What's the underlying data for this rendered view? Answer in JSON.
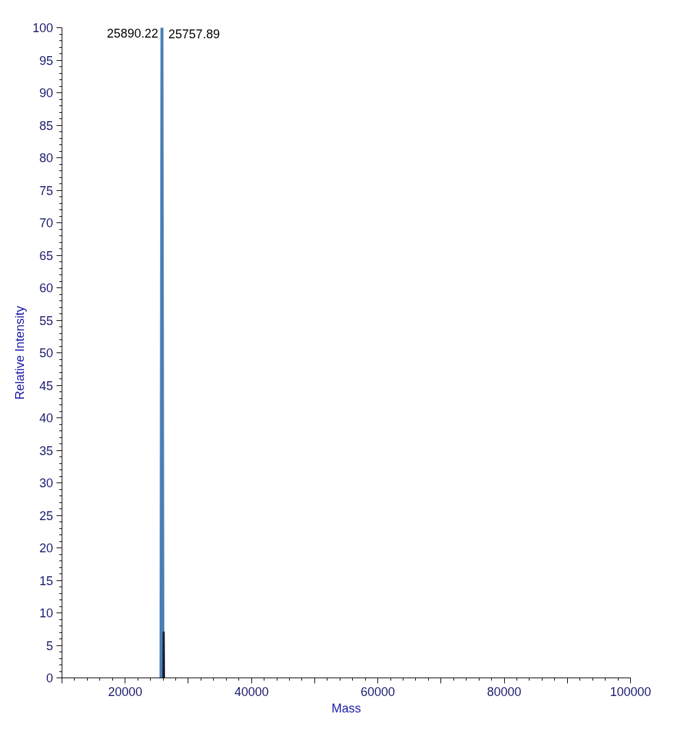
{
  "chart_data": {
    "type": "line",
    "xlabel": "Mass",
    "ylabel": "Relative Intensity",
    "series": [
      {
        "color": "#4a7fb5",
        "x": [
          25600,
          25757.89,
          25820,
          25890.22,
          26000,
          26050
        ],
        "values": [
          0,
          100,
          0,
          100,
          32,
          0
        ]
      },
      {
        "color": "#1a1a2e",
        "x": [
          26050,
          26100,
          26150
        ],
        "values": [
          0,
          7,
          0
        ]
      }
    ],
    "xlim": [
      10000,
      100000
    ],
    "xticks": [
      {
        "value": 10000,
        "label": null
      },
      20000,
      {
        "value": 30000,
        "label": null
      },
      40000,
      {
        "value": 50000,
        "label": null
      },
      60000,
      {
        "value": 70000,
        "label": null
      },
      80000,
      {
        "value": 90000,
        "label": null
      },
      100000
    ],
    "ylim": [
      0,
      100
    ],
    "yticks": [
      0,
      5,
      10,
      15,
      20,
      25,
      30,
      35,
      40,
      45,
      50,
      55,
      60,
      65,
      70,
      75,
      80,
      85,
      90,
      95,
      100
    ],
    "annotations": [
      {
        "text": "25890.22",
        "x": 25890.22,
        "y": 100
      },
      {
        "text": "25757.89",
        "x": 25757.89,
        "y": 100
      }
    ],
    "grid": false,
    "marker": "none",
    "line_style": "solid"
  }
}
